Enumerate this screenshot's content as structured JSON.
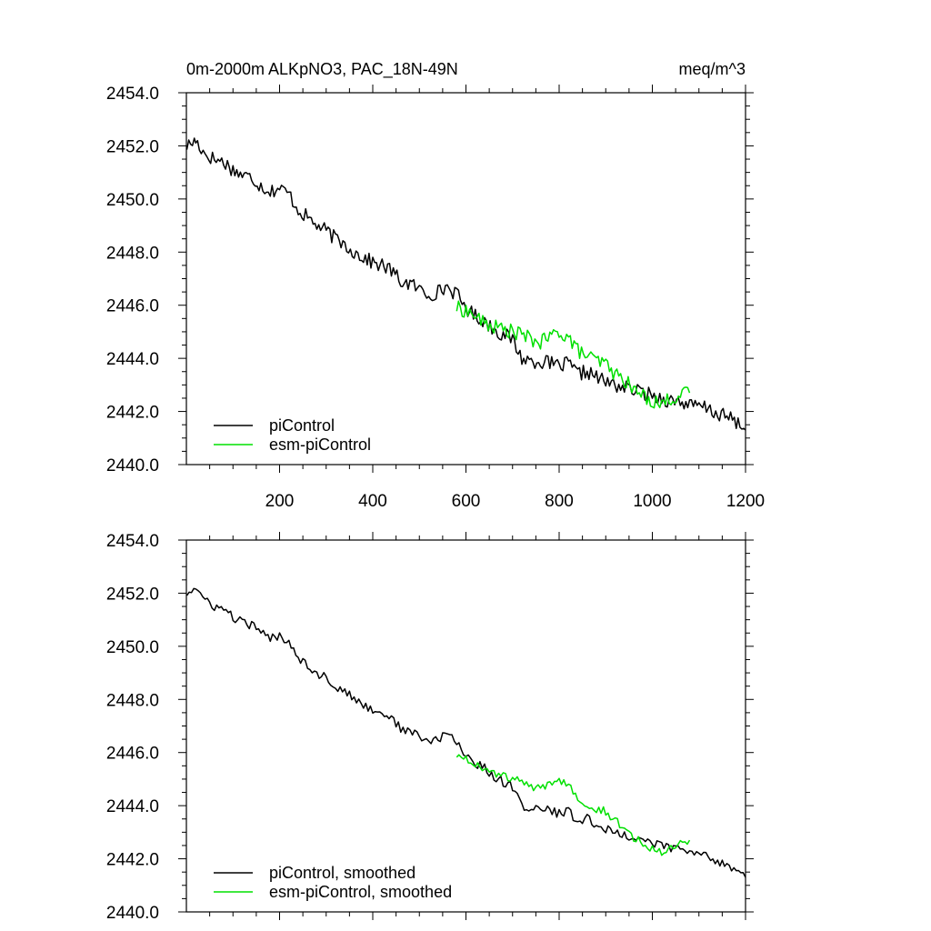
{
  "header": {
    "title_left": "0m-2000m ALKpNO3, PAC_18N-49N",
    "title_right": "meq/m^3"
  },
  "colors": {
    "piControl": "#000000",
    "esm_piControl": "#00e000",
    "axis": "#000000",
    "background": "#ffffff"
  },
  "chart_data": [
    {
      "type": "line",
      "panel": "top",
      "xlim": [
        0,
        1200
      ],
      "ylim": [
        2440.0,
        2454.0
      ],
      "xticks": [
        200,
        400,
        600,
        800,
        1000,
        1200
      ],
      "xtick_labels": [
        "200",
        "400",
        "600",
        "800",
        "1000",
        "1200"
      ],
      "yticks": [
        2440,
        2442,
        2444,
        2446,
        2448,
        2450,
        2452,
        2454
      ],
      "ytick_labels": [
        "2440.0",
        "2442.0",
        "2444.0",
        "2446.0",
        "2448.0",
        "2450.0",
        "2452.0",
        "2454.0"
      ],
      "legend_placement": "bottom-left",
      "series": [
        {
          "name": "piControl",
          "color": "#000000",
          "x": [
            1,
            20,
            40,
            60,
            80,
            100,
            120,
            140,
            160,
            180,
            200,
            220,
            240,
            260,
            280,
            300,
            320,
            340,
            360,
            380,
            400,
            420,
            440,
            460,
            480,
            500,
            520,
            540,
            560,
            580,
            600,
            620,
            640,
            660,
            680,
            700,
            720,
            740,
            760,
            780,
            800,
            820,
            840,
            860,
            880,
            900,
            920,
            940,
            960,
            980,
            1000,
            1020,
            1040,
            1060,
            1080,
            1100,
            1120,
            1140,
            1160,
            1180,
            1200
          ],
          "y": [
            2452.0,
            2452.2,
            2451.7,
            2451.5,
            2451.4,
            2451.1,
            2450.9,
            2450.8,
            2450.5,
            2450.3,
            2450.4,
            2450.2,
            2449.6,
            2449.3,
            2449.0,
            2448.8,
            2448.5,
            2448.3,
            2448.0,
            2447.8,
            2447.6,
            2447.5,
            2447.3,
            2446.9,
            2446.8,
            2446.6,
            2446.4,
            2446.5,
            2446.7,
            2446.4,
            2445.9,
            2445.6,
            2445.4,
            2445.1,
            2444.9,
            2444.7,
            2444.0,
            2443.9,
            2443.9,
            2443.8,
            2443.7,
            2443.8,
            2443.4,
            2443.5,
            2443.3,
            2443.1,
            2443.0,
            2442.9,
            2442.8,
            2442.7,
            2442.6,
            2442.5,
            2442.4,
            2442.4,
            2442.2,
            2442.2,
            2442.1,
            2441.9,
            2441.8,
            2441.6,
            2441.3
          ]
        },
        {
          "name": "esm-piControl",
          "color": "#00e000",
          "x": [
            580,
            600,
            620,
            640,
            660,
            680,
            700,
            720,
            740,
            760,
            780,
            800,
            820,
            840,
            860,
            880,
            900,
            920,
            940,
            960,
            980,
            1000,
            1020,
            1040,
            1060,
            1080
          ],
          "y": [
            2445.9,
            2445.8,
            2445.6,
            2445.3,
            2445.2,
            2445.1,
            2445.0,
            2444.9,
            2444.7,
            2444.6,
            2444.8,
            2445.0,
            2444.8,
            2444.3,
            2444.1,
            2443.9,
            2443.8,
            2443.4,
            2443.2,
            2442.8,
            2442.6,
            2442.4,
            2442.3,
            2442.5,
            2442.6,
            2442.7
          ]
        }
      ]
    },
    {
      "type": "line",
      "panel": "bottom",
      "xlim": [
        0,
        1200
      ],
      "ylim": [
        2440.0,
        2454.0
      ],
      "xticks": [
        200,
        400,
        600,
        800,
        1000,
        1200
      ],
      "yticks": [
        2440,
        2442,
        2444,
        2446,
        2448,
        2450,
        2452,
        2454
      ],
      "ytick_labels": [
        "2440.0",
        "2442.0",
        "2444.0",
        "2446.0",
        "2448.0",
        "2450.0",
        "2452.0",
        "2454.0"
      ],
      "legend_placement": "bottom-left",
      "series": [
        {
          "name": "piControl, smoothed",
          "color": "#000000",
          "x": [
            1,
            20,
            40,
            60,
            80,
            100,
            120,
            140,
            160,
            180,
            200,
            220,
            240,
            260,
            280,
            300,
            320,
            340,
            360,
            380,
            400,
            420,
            440,
            460,
            480,
            500,
            520,
            540,
            560,
            580,
            600,
            620,
            640,
            660,
            680,
            700,
            720,
            740,
            760,
            780,
            800,
            820,
            840,
            860,
            880,
            900,
            920,
            940,
            960,
            980,
            1000,
            1020,
            1040,
            1060,
            1080,
            1100,
            1120,
            1140,
            1160,
            1180,
            1200
          ],
          "y": [
            2452.0,
            2452.2,
            2451.7,
            2451.5,
            2451.4,
            2451.1,
            2450.9,
            2450.8,
            2450.5,
            2450.3,
            2450.4,
            2450.2,
            2449.6,
            2449.3,
            2449.0,
            2448.8,
            2448.5,
            2448.3,
            2448.0,
            2447.8,
            2447.6,
            2447.5,
            2447.3,
            2446.9,
            2446.8,
            2446.6,
            2446.4,
            2446.5,
            2446.7,
            2446.4,
            2445.9,
            2445.6,
            2445.4,
            2445.1,
            2444.9,
            2444.7,
            2444.0,
            2443.9,
            2443.9,
            2443.8,
            2443.7,
            2443.8,
            2443.4,
            2443.5,
            2443.3,
            2443.1,
            2443.0,
            2442.9,
            2442.8,
            2442.7,
            2442.6,
            2442.5,
            2442.4,
            2442.4,
            2442.2,
            2442.2,
            2442.1,
            2441.9,
            2441.8,
            2441.6,
            2441.3
          ]
        },
        {
          "name": "esm-piControl, smoothed",
          "color": "#00e000",
          "x": [
            580,
            600,
            620,
            640,
            660,
            680,
            700,
            720,
            740,
            760,
            780,
            800,
            820,
            840,
            860,
            880,
            900,
            920,
            940,
            960,
            980,
            1000,
            1020,
            1040,
            1060,
            1080
          ],
          "y": [
            2445.9,
            2445.8,
            2445.6,
            2445.3,
            2445.2,
            2445.1,
            2445.0,
            2444.9,
            2444.7,
            2444.6,
            2444.8,
            2445.0,
            2444.8,
            2444.3,
            2444.1,
            2443.9,
            2443.8,
            2443.4,
            2443.2,
            2442.8,
            2442.6,
            2442.4,
            2442.3,
            2442.5,
            2442.6,
            2442.7
          ]
        }
      ]
    }
  ]
}
